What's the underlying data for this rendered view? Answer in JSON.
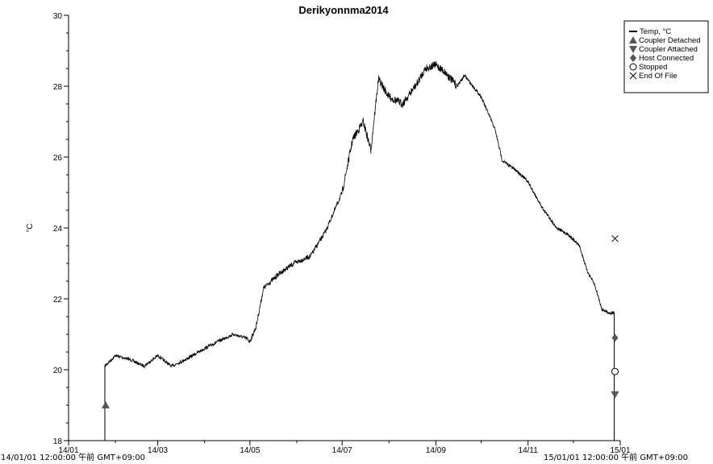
{
  "chart_data": {
    "type": "line",
    "title": "Derikyonnma2014",
    "ylabel": "°C",
    "xlabel": "",
    "ylim": [
      18,
      30
    ],
    "yticks": [
      "18",
      "20",
      "22",
      "24",
      "26",
      "28",
      "30"
    ],
    "xticks": [
      "14/01",
      "14/03",
      "14/05",
      "14/07",
      "14/09",
      "14/11",
      "15/01"
    ],
    "x_start_label": "14/01/01 12:00:00 午前 GMT+09:00",
    "x_end_label": "15/01/01 12:00:00 午前 GMT+09:00",
    "legend_position": "top-right",
    "legend": [
      {
        "name": "Temp, °C",
        "symbol": "line"
      },
      {
        "name": "Coupler Detached",
        "symbol": "triangle-up"
      },
      {
        "name": "Coupler Attached",
        "symbol": "triangle-down"
      },
      {
        "name": "Host Connected",
        "symbol": "diamond"
      },
      {
        "name": "Stopped",
        "symbol": "circle-open"
      },
      {
        "name": "End Of File",
        "symbol": "x"
      }
    ],
    "series": [
      {
        "name": "Temp, °C",
        "x": [
          "2014-01-25",
          "2014-02-01",
          "2014-02-10",
          "2014-02-20",
          "2014-03-01",
          "2014-03-10",
          "2014-03-20",
          "2014-04-01",
          "2014-04-10",
          "2014-04-20",
          "2014-04-28",
          "2014-05-01",
          "2014-05-05",
          "2014-05-10",
          "2014-05-20",
          "2014-05-30",
          "2014-06-10",
          "2014-06-20",
          "2014-07-01",
          "2014-07-08",
          "2014-07-15",
          "2014-07-20",
          "2014-07-25",
          "2014-08-01",
          "2014-08-10",
          "2014-08-20",
          "2014-08-25",
          "2014-09-01",
          "2014-09-07",
          "2014-09-15",
          "2014-09-20",
          "2014-10-01",
          "2014-10-10",
          "2014-10-15",
          "2014-10-25",
          "2014-11-01",
          "2014-11-10",
          "2014-11-20",
          "2014-11-28",
          "2014-12-05",
          "2014-12-10",
          "2014-12-15",
          "2014-12-20",
          "2014-12-25",
          "2014-12-28"
        ],
        "y": [
          20.1,
          20.4,
          20.3,
          20.1,
          20.4,
          20.1,
          20.3,
          20.6,
          20.8,
          21.0,
          20.9,
          20.8,
          21.2,
          22.3,
          22.7,
          23.0,
          23.2,
          23.9,
          25.0,
          26.5,
          27.0,
          26.2,
          28.2,
          27.7,
          27.5,
          28.1,
          28.5,
          28.6,
          28.4,
          28.0,
          28.3,
          27.7,
          26.8,
          25.9,
          25.6,
          25.3,
          24.6,
          24.0,
          23.8,
          23.5,
          22.8,
          22.4,
          21.7,
          21.6,
          21.6
        ]
      }
    ],
    "events": [
      {
        "name": "Coupler Detached",
        "x": "2014-01-25",
        "y": 19.0
      },
      {
        "name": "Coupler Attached",
        "x": "2014-12-28",
        "y": 19.3
      },
      {
        "name": "Host Connected",
        "x": "2014-12-28",
        "y": 20.9
      },
      {
        "name": "Stopped",
        "x": "2014-12-28",
        "y": 19.95
      },
      {
        "name": "End Of File",
        "x": "2014-12-28",
        "y": 23.7
      }
    ]
  }
}
